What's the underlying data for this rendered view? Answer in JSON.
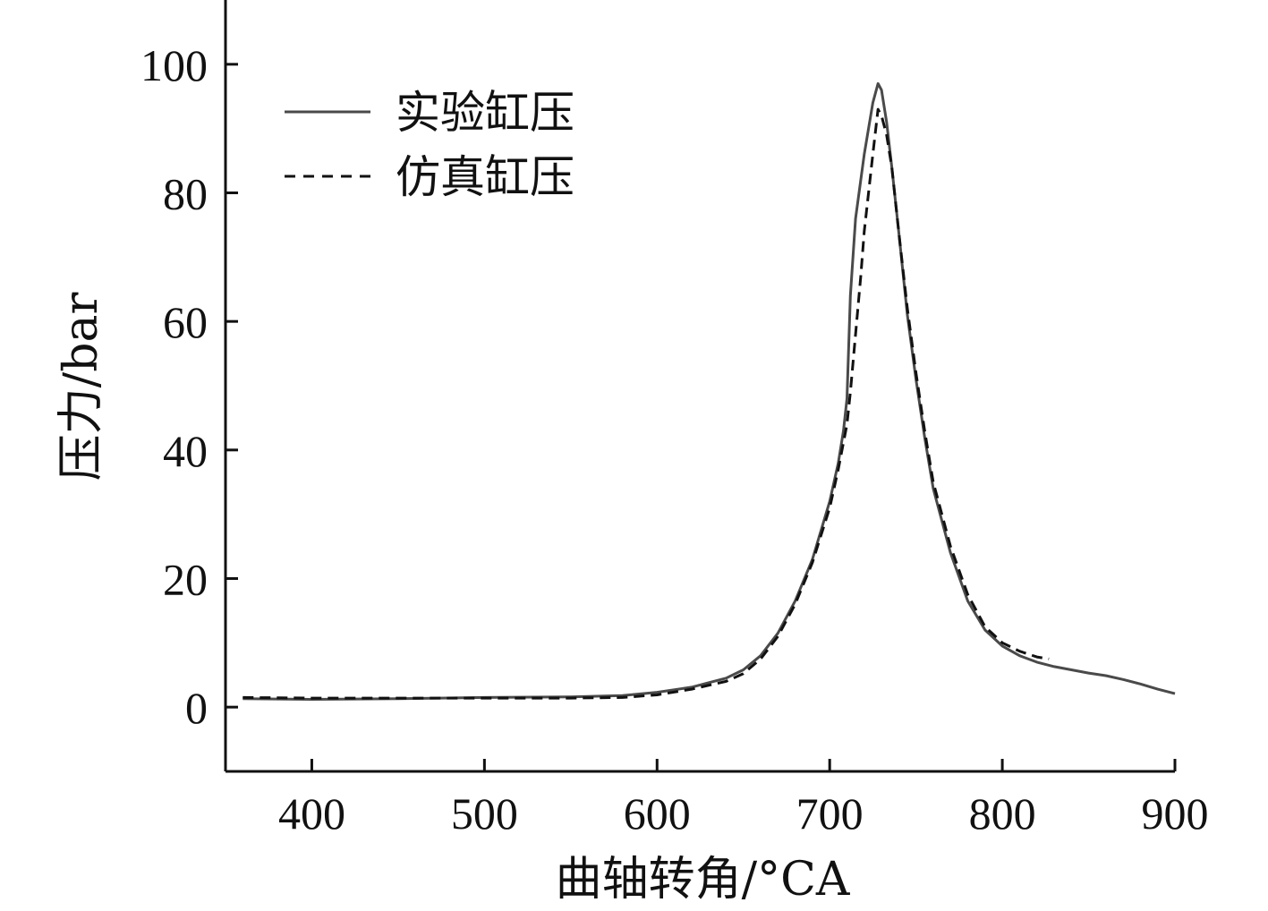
{
  "chart_data": {
    "type": "line",
    "title": "",
    "xlabel": "曲轴转角/°CA",
    "ylabel": "压力/bar",
    "xlim": [
      350,
      900
    ],
    "ylim": [
      -10,
      110
    ],
    "xticks": [
      400,
      500,
      600,
      700,
      800,
      900
    ],
    "xtick_labels": [
      "400",
      "500",
      "600",
      "700",
      "800",
      "900"
    ],
    "yticks": [
      0,
      20,
      40,
      60,
      80,
      100
    ],
    "ytick_labels": [
      "0",
      "20",
      "40",
      "60",
      "80",
      "100"
    ],
    "grid": false,
    "legend_position": "top-left",
    "series": [
      {
        "name": "实验缸压",
        "style": "solid",
        "color": "#4a4a4a",
        "x": [
          360,
          400,
          450,
          500,
          550,
          580,
          600,
          620,
          640,
          650,
          660,
          670,
          680,
          690,
          700,
          705,
          708,
          710,
          712,
          715,
          720,
          725,
          728,
          730,
          733,
          736,
          740,
          745,
          750,
          755,
          760,
          770,
          780,
          790,
          800,
          810,
          820,
          830,
          840,
          850,
          860,
          870,
          880,
          890,
          900
        ],
        "y": [
          1.3,
          1.2,
          1.3,
          1.5,
          1.6,
          1.8,
          2.3,
          3.1,
          4.5,
          5.8,
          8.0,
          11.5,
          16.5,
          23.0,
          32.0,
          38.0,
          43.0,
          48.0,
          64.0,
          76.0,
          86.0,
          94.0,
          97.0,
          96.0,
          91.0,
          84.0,
          74.0,
          61.0,
          51.0,
          42.0,
          34.0,
          24.0,
          16.5,
          12.0,
          9.5,
          8.0,
          7.0,
          6.3,
          5.8,
          5.3,
          4.9,
          4.3,
          3.6,
          2.8,
          2.1
        ]
      },
      {
        "name": "仿真缸压",
        "style": "dashed",
        "color": "#111111",
        "x": [
          360,
          400,
          450,
          500,
          550,
          580,
          600,
          620,
          640,
          650,
          660,
          670,
          680,
          690,
          700,
          705,
          710,
          712,
          715,
          718,
          720,
          725,
          728,
          730,
          733,
          736,
          740,
          745,
          750,
          755,
          760,
          770,
          780,
          790,
          800,
          810,
          820,
          827
        ],
        "y": [
          1.5,
          1.4,
          1.4,
          1.4,
          1.4,
          1.5,
          1.9,
          2.8,
          4.0,
          5.2,
          7.5,
          11.0,
          16.0,
          22.5,
          31.0,
          37.0,
          44.0,
          49.0,
          58.0,
          67.0,
          74.0,
          86.0,
          93.0,
          92.0,
          89.0,
          84.0,
          74.0,
          62.0,
          52.0,
          43.0,
          35.0,
          25.0,
          17.5,
          12.5,
          10.0,
          8.7,
          7.8,
          7.5
        ]
      }
    ]
  },
  "colors": {
    "axis": "#111111",
    "background": "#ffffff"
  }
}
